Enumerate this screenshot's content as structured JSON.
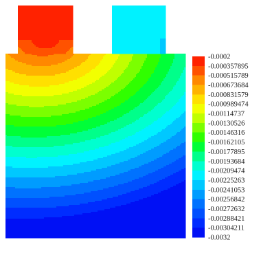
{
  "chart_data": {
    "type": "heatmap",
    "title": "",
    "xlabel": "",
    "ylabel": "",
    "grid": false,
    "legend": "right",
    "colorbar": {
      "min": -0.0032,
      "max": -0.0002,
      "levels": [
        "-0.0002",
        "-0.000357895",
        "-0.000515789",
        "-0.000673684",
        "-0.000831579",
        "-0.000989474",
        "-0.00114737",
        "-0.00130526",
        "-0.00146316",
        "-0.00162105",
        "-0.00177895",
        "-0.00193684",
        "-0.00209474",
        "-0.00225263",
        "-0.00241053",
        "-0.00256842",
        "-0.00272632",
        "-0.00288421",
        "-0.00304211",
        "-0.0032"
      ],
      "colors": [
        "#ff2200",
        "#ff5200",
        "#ff8800",
        "#ffb300",
        "#ffe000",
        "#f2ff00",
        "#c0ff00",
        "#7bff00",
        "#30ff00",
        "#00ff38",
        "#00ff8a",
        "#00ffcf",
        "#00f2ff",
        "#00c8ff",
        "#009cff",
        "#0072ff",
        "#0050ff",
        "#002cff",
        "#0010f5"
      ]
    },
    "geometry": {
      "description_levels": {
        "left_block": -0.0002,
        "right_block": -0.00225
      }
    }
  }
}
